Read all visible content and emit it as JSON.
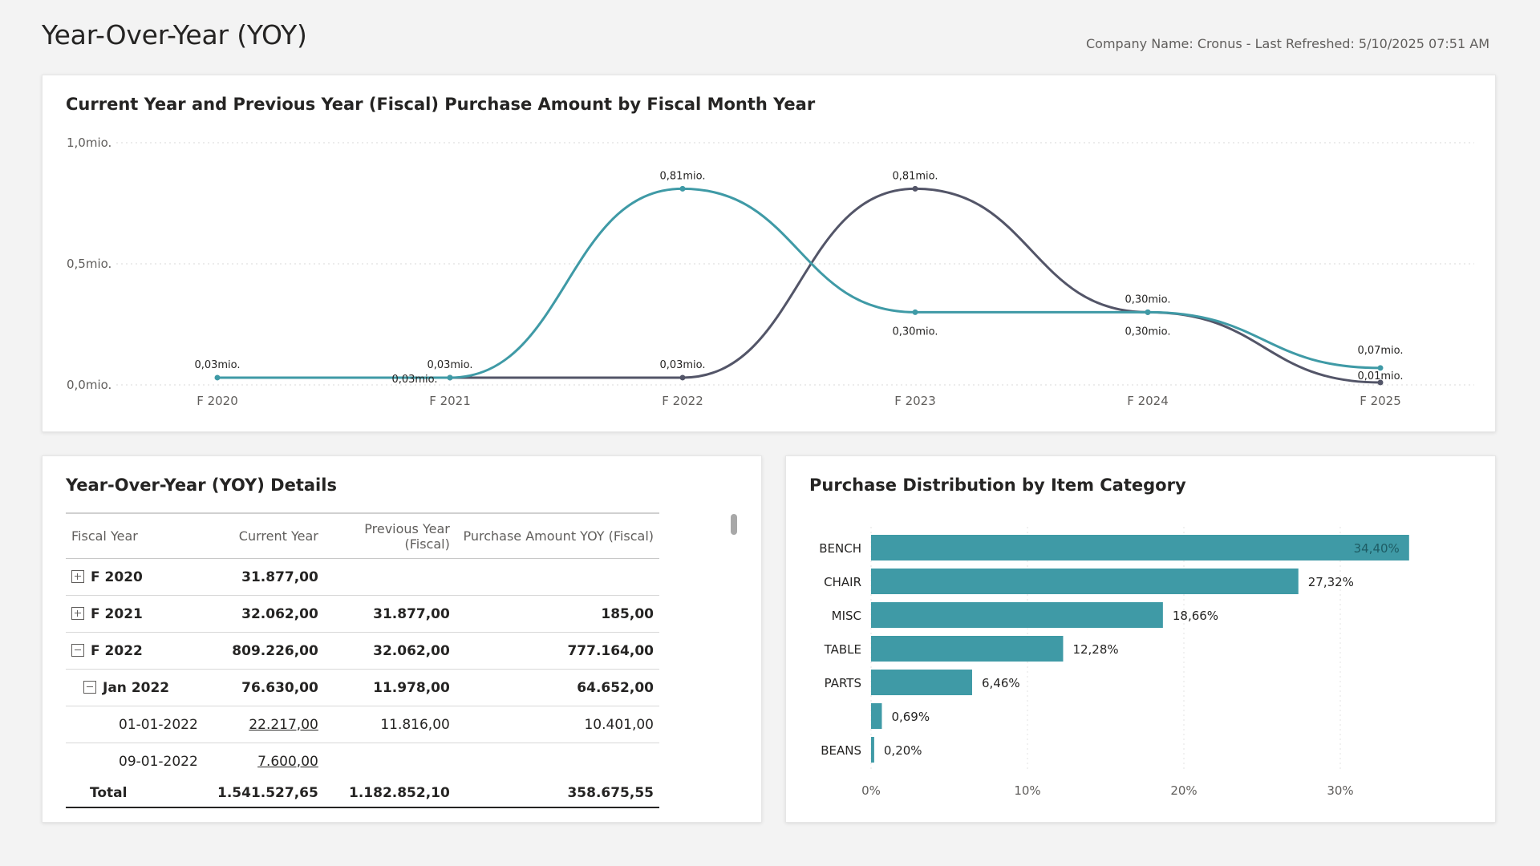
{
  "header": {
    "title": "Year-Over-Year (YOY)",
    "company_info": "Company Name: Cronus - Last Refreshed: 5/10/2025 07:51 AM"
  },
  "colors": {
    "current_year": "#3f9aa6",
    "previous_year": "#535568",
    "bar": "#3f9aa6"
  },
  "line_chart_title": "Current Year and Previous Year (Fiscal) Purchase Amount by Fiscal Month Year",
  "bar_chart_title": "Purchase Distribution by Item Category",
  "table": {
    "title": "Year-Over-Year (YOY) Details",
    "headers": [
      "Fiscal Year",
      "Current Year",
      "Previous Year (Fiscal)",
      "Purchase Amount YOY (Fiscal)"
    ],
    "rows": [
      {
        "label": "F 2020",
        "current": "31.877,00",
        "previous": "",
        "yoy": ""
      },
      {
        "label": "F 2021",
        "current": "32.062,00",
        "previous": "31.877,00",
        "yoy": "185,00"
      },
      {
        "label": "F 2022",
        "current": "809.226,00",
        "previous": "32.062,00",
        "yoy": "777.164,00"
      },
      {
        "label": "Jan 2022",
        "current": "76.630,00",
        "previous": "11.978,00",
        "yoy": "64.652,00"
      },
      {
        "label": "01-01-2022",
        "current": "22.217,00",
        "previous": "11.816,00",
        "yoy": "10.401,00"
      },
      {
        "label": "09-01-2022",
        "current": "7.600,00",
        "previous": "",
        "yoy": ""
      }
    ],
    "total": {
      "label": "Total",
      "current": "1.541.527,65",
      "previous": "1.182.852,10",
      "yoy": "358.675,55"
    }
  },
  "chart_data": [
    {
      "type": "line",
      "title": "Current Year and Previous Year (Fiscal) Purchase Amount by Fiscal Month Year",
      "categories": [
        "F 2020",
        "F 2021",
        "F 2022",
        "F 2023",
        "F 2024",
        "F 2025"
      ],
      "ylim": [
        0,
        1.0
      ],
      "y_ticks": [
        "0,0mio.",
        "0,5mio.",
        "1,0mio."
      ],
      "series": [
        {
          "values": [
            0.03,
            0.03,
            0.81,
            0.3,
            0.3,
            0.07
          ],
          "labels": [
            "0,03mio.",
            "0,03mio.",
            "0,81mio.",
            "0,30mio.",
            "0,30mio.",
            "0,07mio."
          ]
        },
        {
          "values": [
            null,
            0.03,
            0.03,
            0.81,
            0.3,
            0.01
          ],
          "labels": [
            "",
            "0,03mio.",
            "0,03mio.",
            "0,81mio.",
            "0,30mio.",
            "0,01mio."
          ]
        }
      ],
      "grid": true
    },
    {
      "type": "bar",
      "orientation": "horizontal",
      "title": "Purchase Distribution by Item Category",
      "categories": [
        "BENCH",
        "CHAIR",
        "MISC",
        "TABLE",
        "PARTS",
        "",
        "BEANS"
      ],
      "values": [
        34.4,
        27.32,
        18.66,
        12.28,
        6.46,
        0.69,
        0.2
      ],
      "labels": [
        "34,40%",
        "27,32%",
        "18,66%",
        "12,28%",
        "6,46%",
        "0,69%",
        "0,20%"
      ],
      "xlim": [
        0,
        35
      ],
      "x_ticks": [
        "0%",
        "10%",
        "20%",
        "30%"
      ],
      "grid": true
    }
  ]
}
